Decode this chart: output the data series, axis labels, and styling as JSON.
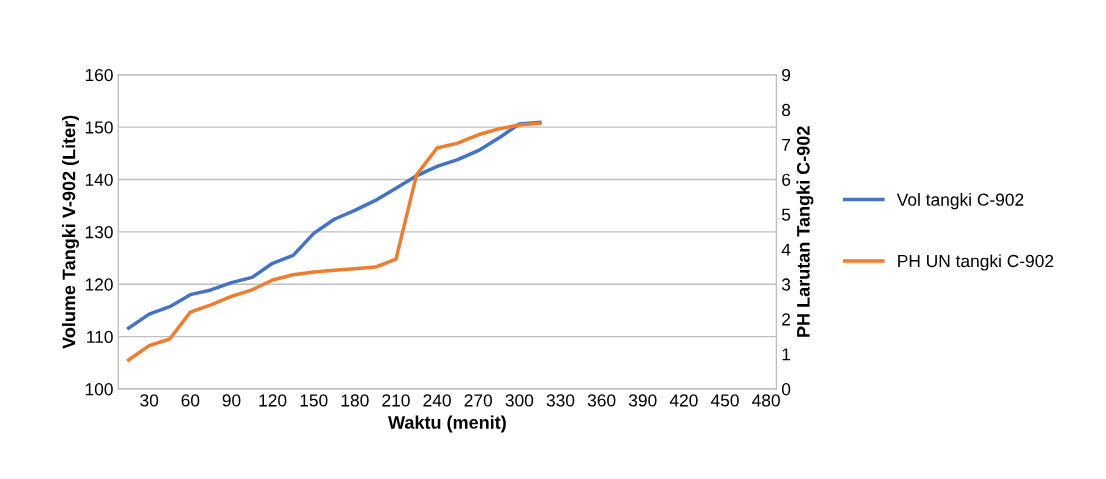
{
  "chart_data": {
    "type": "line",
    "xlabel": "Waktu (menit)",
    "ylabel": "Volume Tangki V-902 (Liter)",
    "y2label": "PH Larutan Tangki C-902",
    "categories": [
      null,
      "30",
      null,
      "60",
      null,
      "90",
      null,
      "120",
      null,
      "150",
      null,
      "180",
      null,
      "210",
      null,
      "240",
      null,
      "270",
      null,
      "300",
      null,
      "330",
      null,
      "360",
      null,
      "390",
      null,
      "420",
      null,
      "450",
      null,
      "480"
    ],
    "series": [
      {
        "name": "Vol tangki C-902",
        "color": "#4472c4",
        "values": [
          111.6,
          114.3,
          115.7,
          118.0,
          118.9,
          120.3,
          121.3,
          124.0,
          125.5,
          129.7,
          132.4,
          134.1,
          136.0,
          138.3,
          140.7,
          142.5,
          143.8,
          145.5,
          147.9,
          150.6,
          150.9,
          null,
          null,
          null,
          null,
          null,
          null,
          null,
          null,
          null,
          null,
          null
        ]
      },
      {
        "name": "PH UN tangki C-902",
        "color": "#ed7d31",
        "axis": "y2",
        "values": [
          0.83,
          1.24,
          1.43,
          2.2,
          2.41,
          2.65,
          2.84,
          3.12,
          3.27,
          3.35,
          3.4,
          3.44,
          3.49,
          3.72,
          6.13,
          6.9,
          7.04,
          7.28,
          7.45,
          7.56,
          7.61,
          null,
          null,
          null,
          null,
          null,
          null,
          null,
          null,
          null,
          null,
          null
        ]
      }
    ],
    "ylim": [
      100,
      160
    ],
    "yticks": [
      100,
      110,
      120,
      130,
      140,
      150,
      160
    ],
    "y2lim": [
      0,
      9
    ],
    "y2ticks": [
      0,
      1,
      2,
      3,
      4,
      5,
      6,
      7,
      8,
      9
    ],
    "grid": "y",
    "legend": "right",
    "marker": "none",
    "line_style": "solid"
  }
}
